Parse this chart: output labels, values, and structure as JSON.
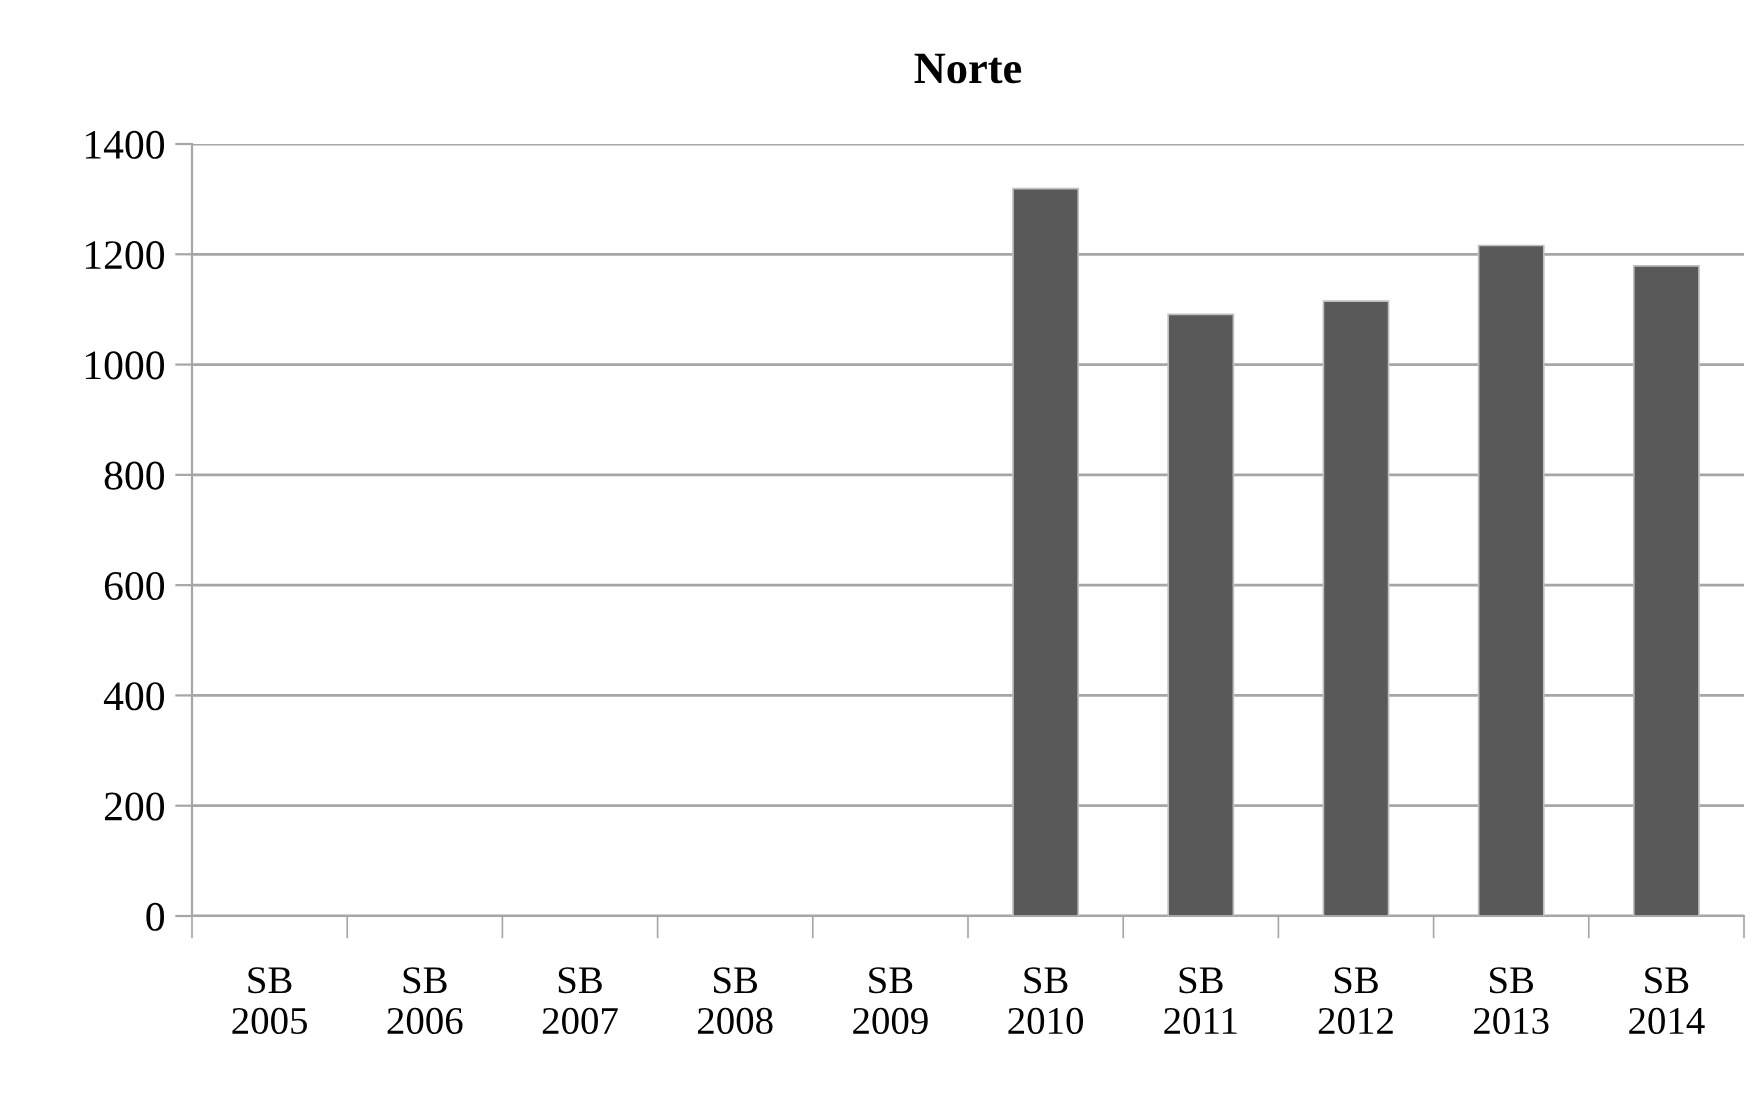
{
  "chart_data": {
    "type": "bar",
    "title": "Norte",
    "categories": [
      "SB\n2005",
      "SB\n2006",
      "SB\n2007",
      "SB\n2008",
      "SB\n2009",
      "SB\n2010",
      "SB\n2011",
      "SB\n2012",
      "SB\n2013",
      "SB\n2014"
    ],
    "values": [
      null,
      null,
      null,
      null,
      null,
      1319,
      1091,
      1115,
      1216,
      1179
    ],
    "color": "#595959",
    "ylim": [
      0,
      1400
    ],
    "yticks": [
      0,
      200,
      400,
      600,
      800,
      1000,
      1200,
      1400
    ],
    "grid": "y",
    "legend": false
  }
}
